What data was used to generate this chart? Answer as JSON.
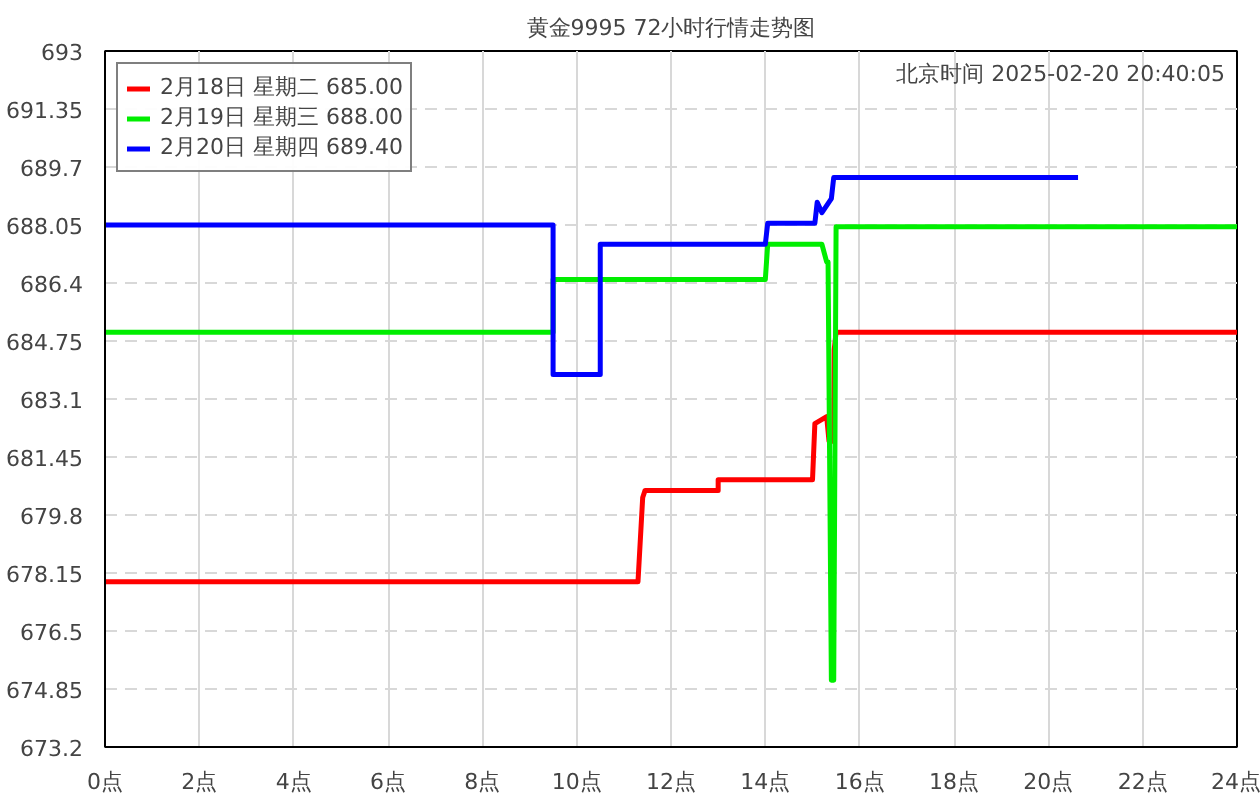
{
  "chart_data": {
    "type": "line",
    "title": "黄金9995 72小时行情走势图",
    "annotations": [
      "北京时间 2025-02-20 20:40:05"
    ],
    "xlim": [
      0,
      24
    ],
    "xticks": [
      {
        "value": 0,
        "label": "0点"
      },
      {
        "value": 2,
        "label": "2点"
      },
      {
        "value": 4,
        "label": "4点"
      },
      {
        "value": 6,
        "label": "6点"
      },
      {
        "value": 8,
        "label": "8点"
      },
      {
        "value": 10,
        "label": "10点"
      },
      {
        "value": 12,
        "label": "12点"
      },
      {
        "value": 14,
        "label": "14点"
      },
      {
        "value": 16,
        "label": "16点"
      },
      {
        "value": 18,
        "label": "18点"
      },
      {
        "value": 20,
        "label": "20点"
      },
      {
        "value": 22,
        "label": "22点"
      },
      {
        "value": 24,
        "label": "24点"
      }
    ],
    "ylim": [
      673.2,
      693
    ],
    "yticks": [
      673.2,
      674.85,
      676.5,
      678.15,
      679.8,
      681.45,
      683.1,
      684.75,
      686.4,
      688.05,
      689.7,
      691.35,
      693
    ],
    "grid": true,
    "legend": "top left",
    "marker": "none",
    "line_style": "solid",
    "series": [
      {
        "name": "2月18日 星期二 685.00",
        "color": "#ff0000",
        "x": [
          0,
          11.3,
          11.4,
          11.45,
          13.0,
          13.0,
          15.0,
          15.05,
          15.3,
          15.35,
          15.45,
          15.46,
          15.5,
          24
        ],
        "values": [
          677.9,
          677.9,
          680.3,
          680.5,
          680.5,
          680.8,
          680.8,
          682.4,
          682.6,
          681.9,
          681.9,
          684.5,
          685.0,
          685.0
        ]
      },
      {
        "name": "2月19日 星期三 688.00",
        "color": "#00ee00",
        "x": [
          0,
          9.5,
          9.5,
          14.0,
          14.05,
          15.2,
          15.3,
          15.33,
          15.4,
          15.45,
          15.5,
          24
        ],
        "values": [
          685.0,
          685.0,
          686.5,
          686.5,
          687.5,
          687.5,
          687.0,
          687.0,
          675.1,
          675.1,
          688.0,
          688.0
        ]
      },
      {
        "name": "2月20日 星期四 689.40",
        "color": "#0000ff",
        "x": [
          0,
          9.5,
          9.5,
          10.5,
          10.5,
          14.0,
          14.05,
          15.05,
          15.1,
          15.2,
          15.4,
          15.45,
          20.63
        ],
        "values": [
          688.05,
          688.05,
          683.8,
          683.8,
          687.5,
          687.5,
          688.1,
          688.1,
          688.7,
          688.4,
          688.8,
          689.4,
          689.4
        ]
      }
    ]
  }
}
